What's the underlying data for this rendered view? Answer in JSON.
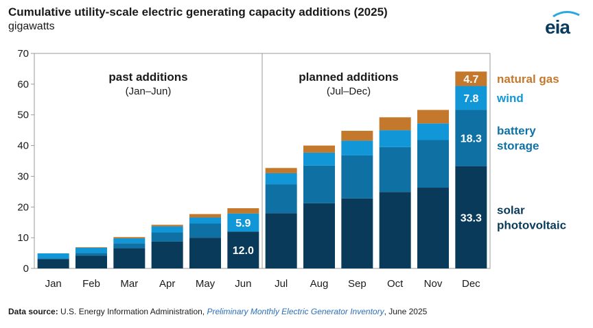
{
  "header": {
    "title": "Cumulative utility-scale electric generating capacity additions (2025)",
    "subtitle": "gigawatts"
  },
  "logo": {
    "text": "eia"
  },
  "footer": {
    "label": "Data source:",
    "text1": "U.S. Energy Information Administration,",
    "link_text": "Preliminary Monthly Electric Generator Inventory",
    "text2": ", June 2025"
  },
  "colors": {
    "solar": "#0a3a5a",
    "battery": "#0f71a3",
    "wind": "#1196d8",
    "gas": "#c4782b"
  },
  "chart_data": {
    "type": "bar",
    "stacked": true,
    "categories": [
      "Jan",
      "Feb",
      "Mar",
      "Apr",
      "May",
      "Jun",
      "Jul",
      "Aug",
      "Sep",
      "Oct",
      "Nov",
      "Dec"
    ],
    "ylim": [
      0,
      70
    ],
    "yticks": [
      0,
      10,
      20,
      30,
      40,
      50,
      60,
      70
    ],
    "series": [
      {
        "name": "solar photovoltaic",
        "key": "solar",
        "values": [
          3.0,
          4.2,
          6.6,
          8.7,
          10.0,
          12.0,
          18.0,
          21.2,
          22.8,
          24.9,
          26.3,
          33.3
        ]
      },
      {
        "name": "battery storage",
        "key": "battery",
        "values": [
          0.3,
          0.8,
          1.6,
          3.0,
          4.6,
          0.0,
          9.4,
          12.3,
          14.0,
          14.6,
          15.5,
          18.3
        ]
      },
      {
        "name": "wind",
        "key": "wind",
        "values": [
          1.6,
          1.7,
          1.6,
          2.0,
          2.0,
          5.9,
          3.6,
          4.2,
          4.8,
          5.5,
          5.4,
          7.8
        ]
      },
      {
        "name": "natural gas",
        "key": "gas",
        "values": [
          0.0,
          0.2,
          0.4,
          0.5,
          1.1,
          1.7,
          1.7,
          2.3,
          3.2,
          4.2,
          4.4,
          4.7
        ]
      }
    ],
    "bar_labels": [
      {
        "category": "Jun",
        "series": "solar",
        "text": "12.0"
      },
      {
        "category": "Jun",
        "series": "wind",
        "text": "5.9"
      },
      {
        "category": "Dec",
        "series": "solar",
        "text": "33.3"
      },
      {
        "category": "Dec",
        "series": "battery",
        "text": "18.3"
      },
      {
        "category": "Dec",
        "series": "wind",
        "text": "7.8"
      },
      {
        "category": "Dec",
        "series": "gas",
        "text": "4.7"
      }
    ],
    "legend_labels": [
      {
        "series": "gas",
        "lines": [
          "natural gas"
        ]
      },
      {
        "series": "wind",
        "lines": [
          "wind"
        ]
      },
      {
        "series": "battery",
        "lines": [
          "battery",
          "storage"
        ]
      },
      {
        "series": "solar",
        "lines": [
          "solar",
          "photovoltaic"
        ]
      }
    ],
    "annotations": [
      {
        "title": "past additions",
        "sub": "(Jan–Jun)"
      },
      {
        "title": "planned additions",
        "sub": "(Jul–Dec)"
      }
    ],
    "divider_after": "Jun"
  }
}
